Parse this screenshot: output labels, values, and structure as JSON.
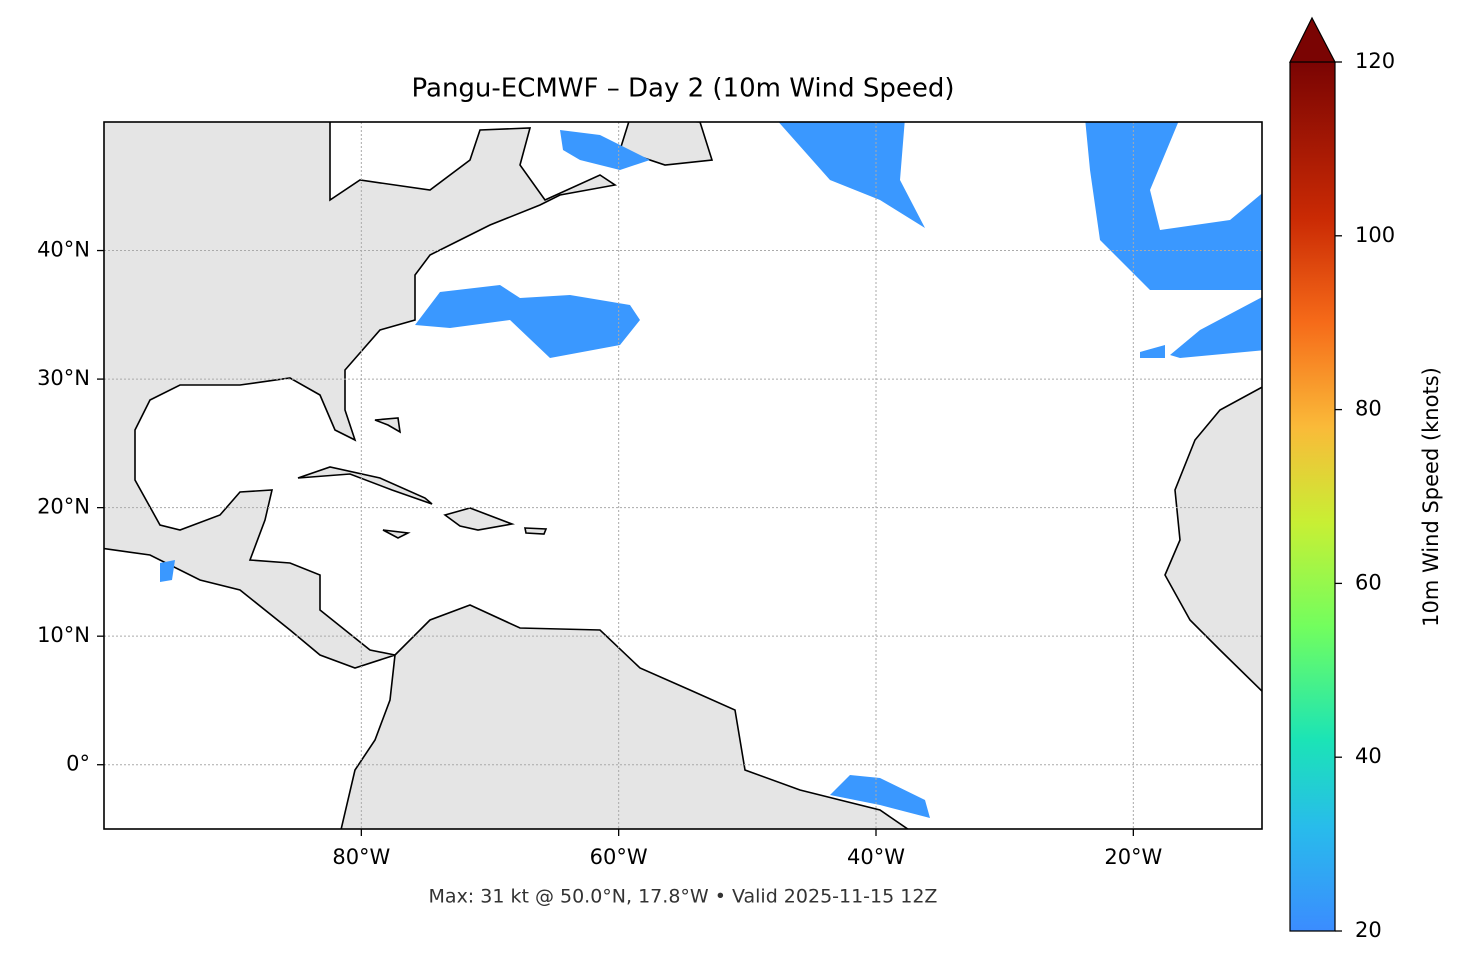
{
  "map": {
    "title": "Pangu-ECMWF – Day 2 (10m Wind Speed)",
    "footer": "Max: 31 kt @ 50.0°N, 17.8°W • Valid 2025-11-15 12Z",
    "xlim": [
      -100,
      -10
    ],
    "ylim": [
      -5,
      50
    ],
    "xticks": [
      {
        "value": -80,
        "label": "80°W"
      },
      {
        "value": -60,
        "label": "60°W"
      },
      {
        "value": -40,
        "label": "40°W"
      },
      {
        "value": -20,
        "label": "20°W"
      }
    ],
    "yticks": [
      {
        "value": 0,
        "label": "0°"
      },
      {
        "value": 10,
        "label": "10°N"
      },
      {
        "value": 20,
        "label": "20°N"
      },
      {
        "value": 30,
        "label": "30°N"
      },
      {
        "value": 40,
        "label": "40°N"
      }
    ],
    "grid": true,
    "colorbar": {
      "label": "10m Wind Speed (knots)",
      "lim": [
        20,
        120
      ],
      "ticks": [
        20,
        40,
        60,
        80,
        100,
        120
      ]
    }
  }
}
